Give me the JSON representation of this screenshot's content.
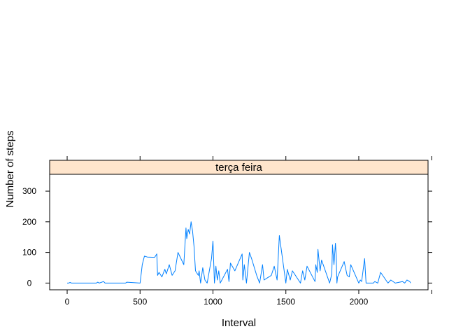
{
  "colors": {
    "background": "#ffffff",
    "strip": "#ffe5cc",
    "line": "#0080ff",
    "axis": "#000000"
  },
  "chart_data": {
    "type": "line",
    "panel_label": "terça feira",
    "xlabel": "Interval",
    "ylabel": "Number of steps",
    "xlim": [
      -120,
      2475
    ],
    "ylim": [
      -22,
      355
    ],
    "xticks": [
      0,
      500,
      1000,
      1500,
      2000
    ],
    "xtick_labels": [
      "0",
      "500",
      "1000",
      "1500",
      "2000"
    ],
    "yticks": [
      0,
      100,
      200,
      300
    ],
    "ytick_labels": [
      "0",
      "100",
      "200",
      "300"
    ],
    "grid": false,
    "series": [
      {
        "x": [
          0,
          10,
          20,
          30,
          40,
          100,
          200,
          210,
          220,
          250,
          260,
          300,
          400,
          410,
          500,
          515,
          530,
          550,
          600,
          615,
          620,
          630,
          650,
          670,
          680,
          700,
          720,
          740,
          760,
          800,
          815,
          820,
          830,
          840,
          850,
          860,
          870,
          880,
          900,
          905,
          915,
          930,
          945,
          960,
          990,
          1000,
          1010,
          1020,
          1030,
          1040,
          1050,
          1100,
          1110,
          1120,
          1150,
          1200,
          1205,
          1215,
          1230,
          1250,
          1265,
          1300,
          1320,
          1340,
          1350,
          1400,
          1420,
          1440,
          1455,
          1500,
          1510,
          1530,
          1545,
          1600,
          1615,
          1630,
          1645,
          1700,
          1705,
          1715,
          1720,
          1735,
          1745,
          1800,
          1815,
          1820,
          1830,
          1840,
          1845,
          1850,
          1855,
          1900,
          1920,
          1935,
          1945,
          2000,
          2010,
          2020,
          2040,
          2050,
          2100,
          2110,
          2130,
          2150,
          2200,
          2220,
          2250,
          2300,
          2315,
          2330,
          2350,
          2355
        ],
        "y": [
          0,
          0,
          2,
          0,
          0,
          0,
          0,
          3,
          0,
          5,
          0,
          0,
          0,
          3,
          0,
          60,
          88,
          85,
          84,
          95,
          25,
          35,
          20,
          45,
          30,
          60,
          25,
          40,
          100,
          60,
          180,
          145,
          175,
          160,
          200,
          170,
          120,
          40,
          25,
          40,
          0,
          50,
          10,
          0,
          80,
          137,
          0,
          55,
          10,
          40,
          0,
          45,
          5,
          65,
          40,
          95,
          10,
          60,
          0,
          100,
          80,
          25,
          0,
          60,
          10,
          25,
          55,
          10,
          155,
          0,
          45,
          10,
          40,
          0,
          40,
          10,
          55,
          5,
          60,
          35,
          110,
          40,
          75,
          0,
          30,
          125,
          60,
          130,
          90,
          0,
          20,
          70,
          25,
          20,
          60,
          0,
          10,
          5,
          80,
          0,
          0,
          5,
          0,
          35,
          0,
          10,
          0,
          5,
          0,
          10,
          5,
          0
        ]
      }
    ]
  }
}
